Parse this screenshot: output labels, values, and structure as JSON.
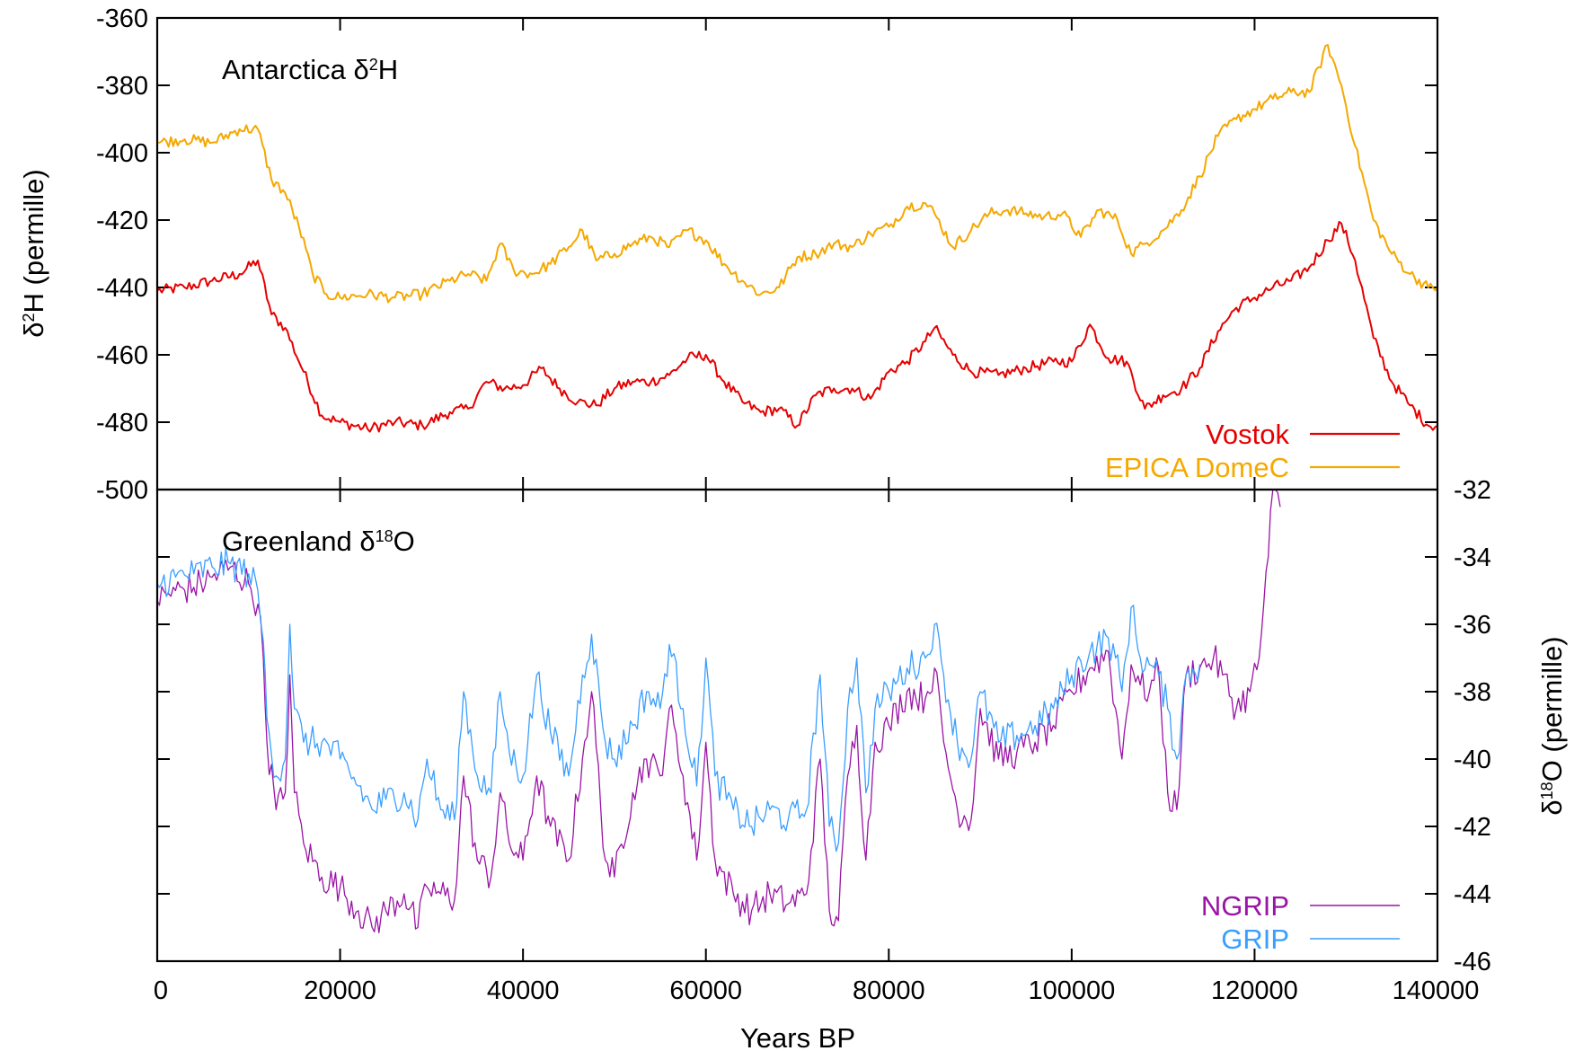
{
  "chart_data": [
    {
      "type": "line",
      "panel_title": {
        "base": "Antarctica δ",
        "sup": "2",
        "tail": "H"
      },
      "ylabel": {
        "base": "δ",
        "sup": "2",
        "tail": "H (permille)"
      },
      "y_axis_side": "left",
      "xlabel": "Years BP",
      "xlim": [
        0,
        140000
      ],
      "ylim": [
        -500,
        -360
      ],
      "x_ticks": [
        0,
        20000,
        40000,
        60000,
        80000,
        100000,
        120000,
        140000
      ],
      "y_ticks": [
        -360,
        -380,
        -400,
        -420,
        -440,
        -460,
        -480,
        -500
      ],
      "legend_position": "bottom-right",
      "series": [
        {
          "name": "Vostok",
          "color": "#e60000",
          "x": [
            0,
            3000,
            6000,
            9000,
            11000,
            12500,
            14000,
            16000,
            18000,
            20000,
            23000,
            26000,
            29000,
            32000,
            34000,
            36000,
            38000,
            40000,
            42000,
            44000,
            46000,
            48000,
            50000,
            52000,
            54000,
            56000,
            58000,
            60000,
            62000,
            64000,
            66000,
            68000,
            70000,
            72000,
            74000,
            76000,
            78000,
            80000,
            82000,
            84000,
            85000,
            87000,
            89000,
            92000,
            95000,
            98000,
            100000,
            102000,
            104000,
            106000,
            108000,
            110000,
            112000,
            114000,
            116000,
            118000,
            120000,
            122000,
            124000,
            126000,
            128000,
            129500,
            131000,
            133000,
            135000,
            137000,
            139000,
            140000
          ],
          "y": [
            -441,
            -440,
            -438,
            -436,
            -432,
            -448,
            -452,
            -465,
            -478,
            -480,
            -482,
            -480,
            -481,
            -477,
            -476,
            -468,
            -470,
            -469,
            -464,
            -470,
            -474,
            -475,
            -470,
            -468,
            -468,
            -466,
            -461,
            -460,
            -468,
            -474,
            -477,
            -476,
            -481,
            -472,
            -470,
            -470,
            -473,
            -465,
            -462,
            -456,
            -452,
            -460,
            -465,
            -466,
            -464,
            -462,
            -462,
            -451,
            -461,
            -462,
            -476,
            -472,
            -470,
            -464,
            -453,
            -446,
            -443,
            -440,
            -438,
            -434,
            -426,
            -421,
            -432,
            -455,
            -468,
            -475,
            -481,
            -481
          ]
        },
        {
          "name": "EPICA DomeC",
          "color": "#f5a800",
          "x": [
            0,
            3000,
            6000,
            9000,
            11000,
            12500,
            14000,
            15500,
            17000,
            18500,
            20000,
            23000,
            26000,
            29000,
            32000,
            34000,
            36000,
            37500,
            39000,
            41000,
            43000,
            45000,
            46500,
            48000,
            50000,
            52000,
            54000,
            56000,
            58000,
            60000,
            62000,
            64000,
            66000,
            68000,
            70000,
            72000,
            74000,
            76000,
            78000,
            80000,
            82000,
            84000,
            85000,
            87000,
            89000,
            91000,
            93000,
            95000,
            97000,
            99000,
            101000,
            103000,
            105000,
            106500,
            108000,
            110000,
            112000,
            114000,
            116000,
            118000,
            120000,
            122000,
            124000,
            126000,
            128000,
            129500,
            131000,
            133000,
            135000,
            137000,
            139000,
            140000
          ],
          "y": [
            -397,
            -396,
            -397,
            -393,
            -393,
            -408,
            -412,
            -422,
            -436,
            -442,
            -443,
            -442,
            -443,
            -442,
            -438,
            -436,
            -438,
            -427,
            -435,
            -436,
            -433,
            -428,
            -423,
            -432,
            -430,
            -427,
            -425,
            -428,
            -423,
            -426,
            -433,
            -438,
            -442,
            -440,
            -431,
            -430,
            -427,
            -428,
            -424,
            -422,
            -416,
            -415,
            -418,
            -428,
            -423,
            -418,
            -417,
            -418,
            -419,
            -418,
            -425,
            -417,
            -420,
            -430,
            -427,
            -423,
            -417,
            -407,
            -395,
            -390,
            -387,
            -384,
            -382,
            -382,
            -368,
            -380,
            -398,
            -420,
            -430,
            -436,
            -440,
            -440
          ]
        }
      ]
    },
    {
      "type": "line",
      "panel_title": {
        "base": "Greenland δ",
        "sup": "18",
        "tail": "O"
      },
      "ylabel": {
        "base": "δ",
        "sup": "18",
        "tail": "O (permille)"
      },
      "y_axis_side": "right",
      "xlabel": "Years BP",
      "xlim": [
        0,
        140000
      ],
      "ylim": [
        -46,
        -32
      ],
      "x_ticks": [
        0,
        20000,
        40000,
        60000,
        80000,
        100000,
        120000,
        140000
      ],
      "y_ticks": [
        -32,
        -34,
        -36,
        -38,
        -40,
        -42,
        -44,
        -46
      ],
      "legend_position": "bottom-right",
      "series": [
        {
          "name": "NGRIP",
          "color": "#9a14a6",
          "x": [
            0,
            2000,
            4000,
            6000,
            8000,
            10000,
            11000,
            11600,
            12000,
            13000,
            14000,
            14500,
            15000,
            16000,
            18000,
            20000,
            22000,
            23500,
            25000,
            27000,
            28500,
            29500,
            31000,
            32500,
            33500,
            35000,
            36500,
            37500,
            38500,
            40000,
            41500,
            43000,
            45000,
            46500,
            47500,
            49000,
            50000,
            52000,
            53500,
            55000,
            56000,
            57500,
            59000,
            60000,
            61000,
            63000,
            65000,
            67000,
            69000,
            71000,
            72500,
            73500,
            74500,
            75500,
            76500,
            77500,
            78500,
            80000,
            82000,
            84000,
            85000,
            86000,
            87500,
            89000,
            90000,
            92000,
            94000,
            96000,
            98000,
            100000,
            102000,
            104000,
            104800,
            105500,
            106500,
            107500,
            108500,
            109500,
            110500,
            111500,
            112500,
            114000,
            115500,
            116500,
            118000,
            119500,
            120500,
            121500,
            122000,
            122800
          ],
          "y": [
            -35.3,
            -35.0,
            -34.9,
            -34.6,
            -34.3,
            -34.8,
            -35.4,
            -37.0,
            -39.5,
            -41.5,
            -41.0,
            -37.5,
            -41.0,
            -42.5,
            -43.5,
            -43.8,
            -44.5,
            -45.0,
            -44.5,
            -44.0,
            -45.0,
            -43.8,
            -44.0,
            -44.2,
            -40.5,
            -43.0,
            -43.5,
            -41.0,
            -42.5,
            -43.0,
            -40.5,
            -42.0,
            -43.0,
            -40.0,
            -38.0,
            -43.0,
            -43.5,
            -41.0,
            -40.0,
            -40.5,
            -38.5,
            -40.5,
            -43.0,
            -39.5,
            -43.0,
            -44.0,
            -44.5,
            -44.0,
            -44.3,
            -44.0,
            -40.0,
            -44.5,
            -44.8,
            -40.5,
            -39.0,
            -43.0,
            -39.5,
            -39.0,
            -38.0,
            -38.2,
            -37.3,
            -39.5,
            -41.5,
            -41.8,
            -38.5,
            -40.0,
            -39.8,
            -39.5,
            -39.0,
            -38.0,
            -37.3,
            -36.8,
            -38.5,
            -40.0,
            -37.2,
            -37.8,
            -38.0,
            -37.3,
            -41.0,
            -41.5,
            -37.5,
            -37.3,
            -37.0,
            -37.5,
            -38.5,
            -38.0,
            -37.0,
            -34.0,
            -32.0,
            -32.5
          ]
        },
        {
          "name": "GRIP",
          "color": "#3a9eff",
          "x": [
            0,
            2000,
            4000,
            6000,
            8000,
            10000,
            11000,
            11600,
            12000,
            13000,
            14000,
            14500,
            15000,
            16000,
            18000,
            20000,
            22000,
            23500,
            25000,
            27000,
            28500,
            29500,
            31000,
            32500,
            33500,
            35000,
            36500,
            37500,
            38500,
            40000,
            41500,
            43000,
            45000,
            46500,
            47500,
            49000,
            50000,
            52000,
            53500,
            55000,
            56000,
            57500,
            59000,
            60000,
            61000,
            63000,
            65000,
            67000,
            69000,
            71000,
            72500,
            73500,
            74500,
            75500,
            76500,
            77500,
            78500,
            80000,
            82000,
            84000,
            85000,
            86000,
            87500,
            89000,
            90000,
            92000,
            94000,
            96000,
            98000,
            100000,
            102000,
            104000,
            104800,
            105500,
            106500,
            107500,
            108500,
            109500,
            110500,
            111500,
            112500,
            114000
          ],
          "y": [
            -34.8,
            -34.6,
            -34.5,
            -34.3,
            -34.2,
            -34.5,
            -35.0,
            -36.5,
            -38.8,
            -40.5,
            -40.0,
            -36.0,
            -38.5,
            -39.5,
            -39.5,
            -40.0,
            -40.8,
            -41.5,
            -41.2,
            -41.0,
            -41.8,
            -40.0,
            -41.5,
            -41.8,
            -38.0,
            -40.5,
            -41.0,
            -38.0,
            -39.8,
            -40.5,
            -37.5,
            -39.2,
            -40.5,
            -37.5,
            -36.3,
            -39.5,
            -40.0,
            -39.0,
            -38.0,
            -38.5,
            -36.6,
            -38.5,
            -40.8,
            -37.0,
            -40.5,
            -41.5,
            -42.0,
            -41.5,
            -41.8,
            -41.5,
            -37.5,
            -42.0,
            -42.5,
            -38.5,
            -37.0,
            -41.0,
            -38.5,
            -38.0,
            -37.3,
            -37.0,
            -36.0,
            -37.5,
            -39.5,
            -40.0,
            -38.0,
            -39.5,
            -39.3,
            -39.0,
            -38.5,
            -37.5,
            -36.8,
            -36.4,
            -37.0,
            -38.0,
            -35.5,
            -37.0,
            -37.2,
            -37.5,
            -38.5,
            -40.0,
            -37.5,
            -37.2
          ]
        }
      ]
    }
  ]
}
